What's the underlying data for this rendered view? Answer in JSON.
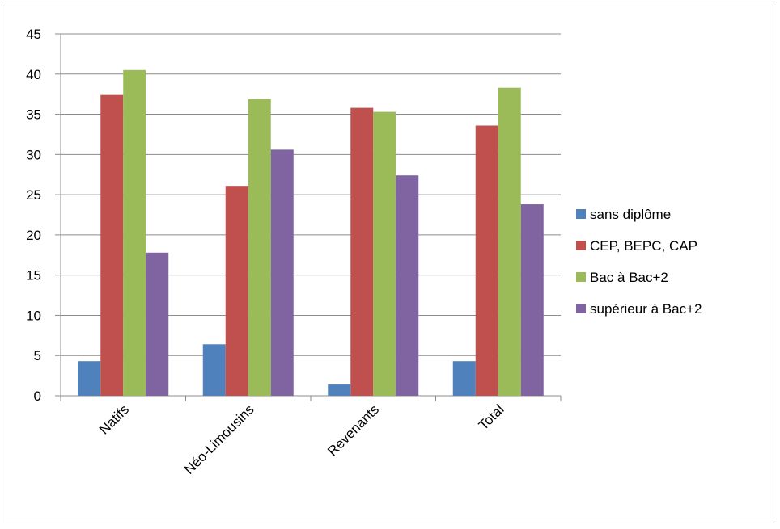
{
  "chart_data": {
    "type": "bar",
    "title": "",
    "xlabel": "",
    "ylabel": "",
    "categories": [
      "Natifs",
      "Néo-Limousins",
      "Revenants",
      "Total"
    ],
    "series": [
      {
        "name": "sans diplôme",
        "color": "#4f81bd",
        "values": [
          4.3,
          6.4,
          1.4,
          4.3
        ]
      },
      {
        "name": "CEP, BEPC, CAP",
        "color": "#c0504d",
        "values": [
          37.4,
          26.1,
          35.8,
          33.6
        ]
      },
      {
        "name": "Bac à Bac+2",
        "color": "#9bbb59",
        "values": [
          40.5,
          36.9,
          35.3,
          38.3
        ]
      },
      {
        "name": "supérieur à Bac+2",
        "color": "#8064a2",
        "values": [
          17.8,
          30.6,
          27.4,
          23.8
        ]
      }
    ],
    "ylim": [
      0,
      45
    ],
    "yticks": [
      0,
      5,
      10,
      15,
      20,
      25,
      30,
      35,
      40,
      45
    ],
    "grid": true,
    "legend_position": "right",
    "category_label_rotation": "diagonal"
  }
}
